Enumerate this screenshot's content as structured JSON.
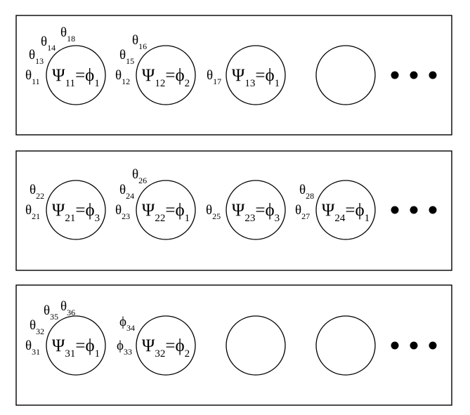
{
  "diagram": {
    "rows": [
      {
        "circles": [
          {
            "psi_sub": "11",
            "phi_sub": "1",
            "thetas": [
              {
                "sub": "11"
              },
              {
                "sub": "13"
              },
              {
                "sub": "14"
              },
              {
                "sub": "18"
              }
            ]
          },
          {
            "psi_sub": "12",
            "phi_sub": "2",
            "thetas": [
              {
                "sub": "12"
              },
              {
                "sub": "15"
              },
              {
                "sub": "16"
              }
            ]
          },
          {
            "psi_sub": "13",
            "phi_sub": "1",
            "thetas": [
              {
                "sub": "17"
              }
            ]
          },
          {
            "psi_sub": "",
            "phi_sub": "",
            "thetas": []
          }
        ]
      },
      {
        "circles": [
          {
            "psi_sub": "21",
            "phi_sub": "3",
            "thetas": [
              {
                "sub": "21"
              },
              {
                "sub": "22"
              }
            ]
          },
          {
            "psi_sub": "22",
            "phi_sub": "1",
            "thetas": [
              {
                "sub": "23"
              },
              {
                "sub": "24"
              },
              {
                "sub": "26"
              }
            ]
          },
          {
            "psi_sub": "23",
            "phi_sub": "3",
            "thetas": [
              {
                "sub": "25"
              }
            ]
          },
          {
            "psi_sub": "24",
            "phi_sub": "1",
            "thetas": [
              {
                "sub": "27"
              },
              {
                "sub": "28"
              }
            ]
          }
        ]
      },
      {
        "circles": [
          {
            "psi_sub": "31",
            "phi_sub": "1",
            "thetas": [
              {
                "sub": "31"
              },
              {
                "sub": "32"
              },
              {
                "sub": "35"
              },
              {
                "sub": "36"
              }
            ]
          },
          {
            "psi_sub": "32",
            "phi_sub": "2",
            "thetas": [
              {
                "sub": "33",
                "symbol": "phi"
              },
              {
                "sub": "34",
                "symbol": "phi"
              }
            ]
          },
          {
            "psi_sub": "",
            "phi_sub": "",
            "thetas": []
          },
          {
            "psi_sub": "",
            "phi_sub": "",
            "thetas": []
          }
        ]
      }
    ],
    "symbols": {
      "psi": "Ψ",
      "phi": "ϕ",
      "theta": "θ",
      "equals": "="
    }
  }
}
